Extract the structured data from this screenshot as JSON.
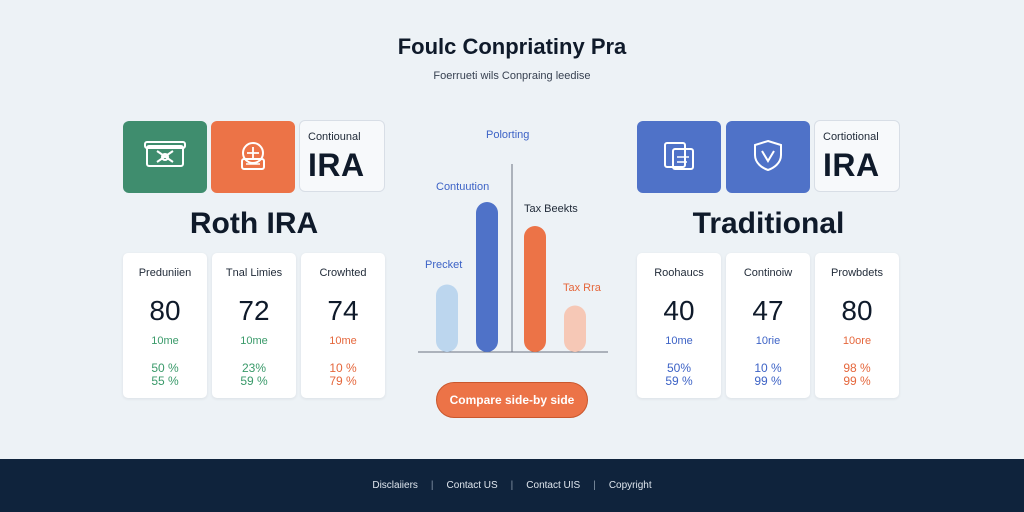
{
  "header": {
    "title": "Foulc Conpriatiny Pra",
    "subtitle": "Foerrueti wils Conpraing leedise"
  },
  "roth": {
    "label_tile_small": "Contiounal",
    "label_tile_big": "IRA",
    "heading": "Roth IRA",
    "icons": [
      "cash-icon",
      "coins-icon"
    ],
    "cards": [
      {
        "label": "Preduniien",
        "value": "80",
        "sub": "10me",
        "pct1": "50 %",
        "pct2": "55 %",
        "color": "#3a9a6a"
      },
      {
        "label": "Tnal Limies",
        "value": "72",
        "sub": "10me",
        "pct1": "23%",
        "pct2": "59 %",
        "color": "#3a9a6a"
      },
      {
        "label": "Crowhted",
        "value": "74",
        "sub": "10me",
        "pct1": "10 %",
        "pct2": "79 %",
        "color": "#e5673c"
      }
    ]
  },
  "traditional": {
    "label_tile_small": "Cortiotional",
    "label_tile_big": "IRA",
    "heading": "Traditional",
    "icons": [
      "folders-icon",
      "shield-icon"
    ],
    "cards": [
      {
        "label": "Roohaucs",
        "value": "40",
        "sub": "10me",
        "pct1": "50%",
        "pct2": "59 %",
        "color": "#3d63c6"
      },
      {
        "label": "Continoiw",
        "value": "47",
        "sub": "10rie",
        "pct1": "10 %",
        "pct2": "99 %",
        "color": "#3d63c6"
      },
      {
        "label": "Prowbdets",
        "value": "80",
        "sub": "10ore",
        "pct1": "98 %",
        "pct2": "99 %",
        "color": "#e5673c"
      }
    ]
  },
  "chart": {
    "labels": [
      "Polorting",
      "Contuution",
      "Tax Beekts",
      "Precket",
      "Tax Rra"
    ]
  },
  "chart_data": {
    "type": "bar",
    "title": "",
    "xlabel": "",
    "ylabel": "",
    "categories": [
      "Precket",
      "Contuution",
      "Tax Beekts",
      "Tax Rra"
    ],
    "values": [
      45,
      100,
      84,
      31
    ],
    "colors": [
      "#bcd6ee",
      "#4f72c8",
      "#ec7347",
      "#f6c8b6"
    ],
    "ylim": [
      0,
      100
    ],
    "grid": false
  },
  "compare_button": {
    "label": "Compare side-by side"
  },
  "footer": {
    "links": [
      "Disclaiiers",
      "Contact US",
      "Contact UIS",
      "Copyright"
    ]
  }
}
